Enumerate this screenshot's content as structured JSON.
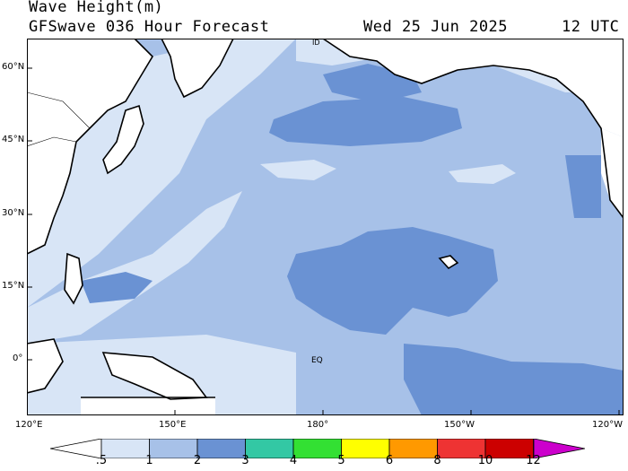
{
  "header": {
    "title": "Wave Height(m)",
    "model": "GFSwave 036 Hour Forecast",
    "date": "Wed 25 Jun 2025",
    "time": "12 UTC"
  },
  "lat_labels": [
    "60°N",
    "45°N",
    "30°N",
    "15°N",
    "0°"
  ],
  "lon_labels": [
    "120°E",
    "150°E",
    "180°",
    "150°W",
    "120°W"
  ],
  "map_labels": {
    "equator": "EQ",
    "dateline": "ID"
  },
  "colors": {
    "c_lt5": "#ffffff",
    "c_5_1": "#d8e5f6",
    "c_1_2": "#a7c1e8",
    "c_2_3": "#6a92d3",
    "c_3_4": "#33c8a4",
    "c_4_5": "#33e033",
    "c_5_6": "#ffff00",
    "c_6_8": "#ff9900",
    "c_8_10": "#ee3333",
    "c_10_12": "#cc0000",
    "c_gt12": "#cc00cc",
    "land": "#ffffff"
  },
  "colorbar": {
    "ticks": [
      ".5",
      "1",
      "2",
      "3",
      "4",
      "5",
      "6",
      "8",
      "10",
      "12"
    ],
    "colors": [
      "#d8e5f6",
      "#a7c1e8",
      "#6a92d3",
      "#33c8a4",
      "#33e033",
      "#ffff00",
      "#ff9900",
      "#ee3333",
      "#cc0000"
    ],
    "under_color": "#ffffff",
    "over_color": "#cc00cc"
  }
}
